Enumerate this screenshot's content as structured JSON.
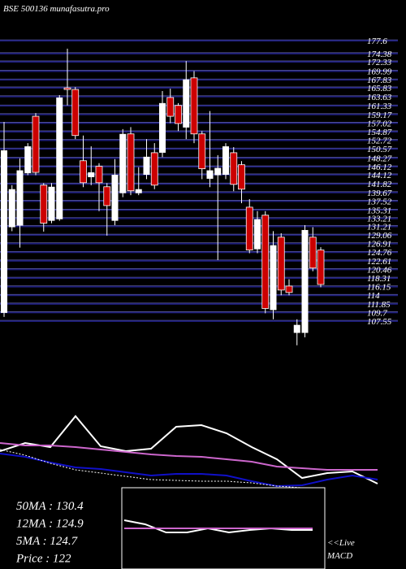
{
  "chart_data": [
    {
      "type": "candlestick",
      "title": "BSE 500136 munafasutra.pro",
      "ylim": [
        107.55,
        177.6
      ],
      "yticks": [
        177.6,
        174.38,
        172.33,
        169.99,
        167.83,
        165.83,
        163.63,
        161.33,
        159.17,
        157.02,
        154.87,
        152.72,
        150.57,
        148.27,
        146.12,
        144.12,
        141.82,
        139.67,
        137.52,
        135.31,
        133.21,
        131.21,
        129.06,
        126.91,
        124.76,
        122.61,
        120.46,
        118.31,
        116.15,
        114,
        111.85,
        109.7,
        107.55
      ],
      "grid": true,
      "grid_color": "#1c1c78",
      "up_color": "#ffffff",
      "down_color": "#cc0000",
      "open": [
        109.6,
        131.0,
        131.4,
        144.5,
        158.7,
        141.5,
        132.6,
        133.0,
        165.8,
        165.4,
        147.6,
        143.5,
        146.2,
        141.1,
        132.6,
        139.5,
        154.3,
        139.5,
        144.1,
        149.6,
        149.6,
        163.4,
        161.4,
        155.9,
        168.3,
        154.3,
        143.1,
        144.0,
        144.1,
        149.6,
        146.6,
        136.0,
        125.5,
        134.0,
        110.3,
        128.5,
        116.3,
        104.6,
        104.6,
        128.5,
        125.3
      ],
      "high": [
        157.3,
        141.5,
        148.2,
        152.0,
        159.5,
        142.0,
        142.0,
        164.0,
        175.6,
        166.0,
        153.9,
        151.2,
        147.0,
        142.0,
        148.0,
        155.5,
        156.0,
        146.0,
        153.0,
        152.0,
        165.0,
        165.6,
        162.0,
        172.5,
        170.0,
        155.0,
        160.0,
        149.0,
        152.0,
        151.0,
        147.5,
        138.0,
        135.0,
        135.0,
        130.0,
        129.5,
        118.0,
        108.0,
        131.5,
        131.0,
        126.0
      ],
      "low": [
        108.6,
        130.0,
        125.9,
        144.0,
        144.0,
        129.9,
        132.0,
        132.6,
        161.4,
        153.0,
        141.0,
        141.5,
        135.0,
        128.9,
        131.5,
        138.5,
        139.0,
        139.0,
        143.0,
        140.5,
        148.5,
        157.0,
        155.0,
        153.0,
        152.0,
        143.0,
        141.0,
        122.8,
        143.0,
        140.0,
        137.0,
        124.5,
        124.5,
        109.5,
        108.0,
        114.0,
        114.0,
        101.5,
        103.5,
        120.0,
        116.0
      ],
      "close": [
        150.2,
        140.5,
        145.2,
        151.2,
        144.7,
        132.0,
        141.1,
        163.4,
        165.4,
        153.9,
        142.1,
        144.7,
        142.1,
        136.4,
        144.1,
        154.3,
        140.1,
        140.5,
        148.6,
        141.5,
        162.0,
        158.7,
        156.9,
        167.9,
        154.3,
        145.6,
        145.2,
        145.8,
        151.2,
        141.7,
        140.5,
        125.3,
        133.0,
        110.7,
        126.5,
        115.3,
        114.7,
        106.6,
        130.3,
        120.8,
        116.7
      ],
      "annotations": [
        "50MA : 130.4",
        "12MA : 124.9",
        "5MA : 124.7",
        "Price  : 122"
      ]
    },
    {
      "type": "line",
      "ylim": [
        0,
        110
      ],
      "series": [
        {
          "name": "Price",
          "color": "#ffffff",
          "dash": false,
          "values": [
            65,
            75,
            70,
            108,
            71,
            65,
            68,
            95,
            97,
            87,
            70,
            55,
            32,
            38,
            40,
            25
          ]
        },
        {
          "name": "50MA",
          "color": "#cc66cc",
          "dash": false,
          "values": [
            75,
            72,
            72,
            70,
            67,
            64,
            61,
            59,
            58,
            55,
            52,
            46,
            44,
            42,
            42,
            42
          ]
        },
        {
          "name": "12MA",
          "color": "#1010c8",
          "dash": false,
          "values": [
            62,
            58,
            51,
            45,
            43,
            39,
            35,
            37,
            37,
            35,
            28,
            22,
            23,
            30,
            35,
            30
          ]
        },
        {
          "name": "5MA",
          "color": "#ffffff",
          "dash": true,
          "values": [
            67,
            60,
            50,
            42,
            38,
            34,
            30,
            29,
            28,
            28,
            26,
            22,
            20,
            null,
            null,
            null
          ]
        }
      ]
    },
    {
      "type": "macd",
      "ylim": [
        -50,
        50
      ],
      "annotations": [
        "<<Live",
        "MACD"
      ],
      "series": [
        {
          "name": "MACD",
          "color": "#ffffff",
          "values": [
            10,
            5,
            -5,
            -5,
            0,
            -5,
            -2,
            0,
            -2,
            -2
          ]
        },
        {
          "name": "Signal",
          "color": "#cc66cc",
          "values": [
            0,
            0,
            0,
            0,
            0,
            0,
            0,
            0,
            0,
            0
          ]
        }
      ]
    }
  ]
}
